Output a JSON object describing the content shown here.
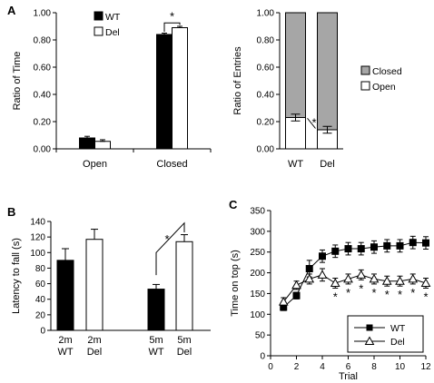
{
  "panel_labels": [
    "A",
    "B",
    "C"
  ],
  "chart_data": [
    {
      "id": "A1",
      "type": "bar",
      "panel_label": "A",
      "categories": [
        "Open",
        "Closed"
      ],
      "series": [
        {
          "name": "WT",
          "values": [
            0.08,
            0.84
          ],
          "errors": [
            0.012,
            0.01
          ],
          "color": "#000000"
        },
        {
          "name": "Del",
          "values": [
            0.055,
            0.89
          ],
          "errors": [
            0.012,
            0.01
          ],
          "color": "#ffffff"
        }
      ],
      "xlabel": "",
      "ylabel": "Ratio of Time",
      "ylim": [
        0,
        1
      ],
      "yticks": [
        "0.00",
        "0.20",
        "0.40",
        "0.60",
        "0.80",
        "1.00"
      ],
      "legend": "top-left",
      "annotation": "*"
    },
    {
      "id": "A2",
      "type": "bar",
      "stacked": true,
      "categories": [
        "WT",
        "Del"
      ],
      "series": [
        {
          "name": "Open",
          "values": [
            0.23,
            0.14
          ],
          "errors": [
            0.025,
            0.025
          ],
          "color": "#ffffff"
        },
        {
          "name": "Closed",
          "values": [
            0.77,
            0.86
          ],
          "color": "#a6a6a6"
        }
      ],
      "xlabel": "",
      "ylabel": "Ratio of Entries",
      "ylim": [
        0,
        1
      ],
      "yticks": [
        "0.00",
        "0.20",
        "0.40",
        "0.60",
        "0.80",
        "1.00"
      ],
      "legend": "right",
      "annotation": "*"
    },
    {
      "id": "B",
      "type": "bar",
      "panel_label": "B",
      "categories": [
        "2m\nWT",
        "2m\nDel",
        "5m\nWT",
        "5m\nDel"
      ],
      "values": [
        90,
        117,
        53,
        114
      ],
      "errors": [
        15,
        13,
        6,
        9
      ],
      "colors": [
        "#000000",
        "#ffffff",
        "#000000",
        "#ffffff"
      ],
      "xlabel": "",
      "ylabel": "Latency to fall (s)",
      "ylim": [
        0,
        140
      ],
      "yticks": [
        "0",
        "20",
        "40",
        "60",
        "80",
        "100",
        "120",
        "140"
      ],
      "annotation": "*"
    },
    {
      "id": "C",
      "type": "line",
      "panel_label": "C",
      "x": [
        1,
        2,
        3,
        4,
        5,
        6,
        7,
        8,
        9,
        10,
        11,
        12
      ],
      "series": [
        {
          "name": "WT",
          "marker": "filled-square",
          "values": [
            117,
            145,
            210,
            240,
            252,
            258,
            258,
            262,
            265,
            265,
            273,
            272
          ],
          "errors": [
            8,
            8,
            20,
            15,
            15,
            15,
            15,
            15,
            15,
            15,
            15,
            15
          ]
        },
        {
          "name": "Del",
          "marker": "open-triangle",
          "values": [
            130,
            170,
            185,
            195,
            175,
            185,
            195,
            185,
            180,
            180,
            185,
            175
          ],
          "errors": [
            10,
            10,
            12,
            15,
            12,
            12,
            12,
            12,
            12,
            12,
            12,
            12
          ]
        }
      ],
      "stars_at_trials": [
        5,
        6,
        7,
        8,
        9,
        10,
        11,
        12
      ],
      "star_text": "*",
      "xlabel": "Trial",
      "ylabel": "Time on top (s)",
      "xlim": [
        0,
        12
      ],
      "ylim": [
        0,
        350
      ],
      "xticks": [
        "0",
        "2",
        "4",
        "6",
        "8",
        "10",
        "12"
      ],
      "yticks": [
        "0",
        "50",
        "100",
        "150",
        "200",
        "250",
        "300",
        "350"
      ],
      "legend": "bottom-right"
    }
  ]
}
